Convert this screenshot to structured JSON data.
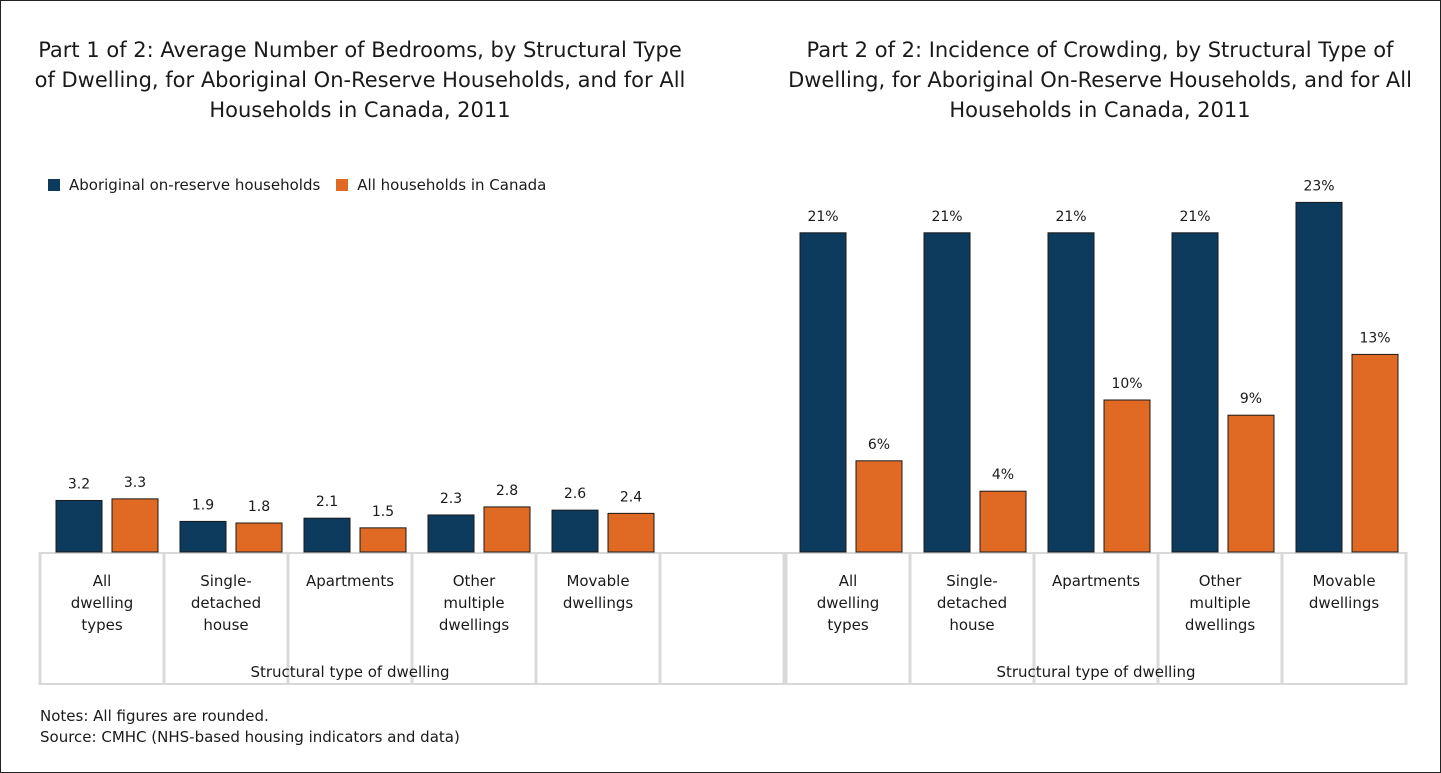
{
  "colors": {
    "series1": "#0d3b5e",
    "series2": "#e06a24",
    "axis_band": "#d9d9d9"
  },
  "legend": {
    "series1": "Aboriginal on-reserve households",
    "series2": "All households in Canada"
  },
  "notes": {
    "line1": "Notes: All figures are rounded.",
    "line2": "Source: CMHC (NHS-based housing indicators and data)"
  },
  "chart_data": [
    {
      "type": "bar",
      "title": "Part 1 of 2: Average Number of Bedrooms, by Structural Type of Dwelling, for Aboriginal On-Reserve Households, and for All Households in Canada, 2011",
      "xlabel": "Structural type of dwelling",
      "ylabel": "",
      "ylim": [
        0,
        10
      ],
      "grid": false,
      "legend": "top-left",
      "categories": [
        "All dwelling types",
        "Single-detached house",
        "Apartments",
        "Other multiple dwellings",
        "Movable dwellings"
      ],
      "category_lines": [
        [
          "All",
          "dwelling",
          "types"
        ],
        [
          "Single-",
          "detached",
          "house"
        ],
        [
          "Apartments"
        ],
        [
          "Other",
          "multiple",
          "dwellings"
        ],
        [
          "Movable",
          "dwellings"
        ]
      ],
      "series": [
        {
          "name": "Aboriginal on-reserve households",
          "values": [
            3.2,
            1.9,
            2.1,
            2.3,
            2.6
          ],
          "labels": [
            "3.2",
            "1.9",
            "2.1",
            "2.3",
            "2.6"
          ]
        },
        {
          "name": "All households in Canada",
          "values": [
            3.3,
            1.8,
            1.5,
            2.8,
            2.4
          ],
          "labels": [
            "3.3",
            "1.8",
            "1.5",
            "2.8",
            "2.4"
          ]
        }
      ]
    },
    {
      "type": "bar",
      "title": "Part 2 of 2: Incidence of Crowding, by Structural Type of Dwelling, for Aboriginal On-Reserve Households, and for All Households in Canada, 2011",
      "xlabel": "Structural type of dwelling",
      "ylabel": "",
      "ylim": [
        0,
        25
      ],
      "grid": false,
      "categories": [
        "All dwelling types",
        "Single-detached house",
        "Apartments",
        "Other multiple dwellings",
        "Movable dwellings"
      ],
      "category_lines": [
        [
          "All",
          "dwelling",
          "types"
        ],
        [
          "Single-",
          "detached",
          "house"
        ],
        [
          "Apartments"
        ],
        [
          "Other",
          "multiple",
          "dwellings"
        ],
        [
          "Movable",
          "dwellings"
        ]
      ],
      "series": [
        {
          "name": "Aboriginal on-reserve households",
          "values": [
            21,
            21,
            21,
            21,
            23
          ],
          "labels": [
            "21%",
            "21%",
            "21%",
            "21%",
            "23%"
          ]
        },
        {
          "name": "All households in Canada",
          "values": [
            6,
            4,
            10,
            9,
            13
          ],
          "labels": [
            "6%",
            "4%",
            "10%",
            "9%",
            "13%"
          ]
        }
      ]
    }
  ]
}
